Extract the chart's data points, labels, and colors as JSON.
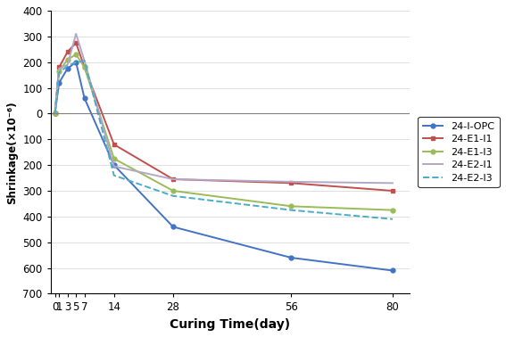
{
  "x_values": [
    0,
    1,
    3,
    5,
    7,
    14,
    28,
    56,
    80
  ],
  "series": [
    {
      "label": "24-I-OPC",
      "color": "#4472C4",
      "linestyle": "-",
      "marker": "o",
      "markersize": 3.5,
      "linewidth": 1.4,
      "values": [
        0,
        120,
        175,
        200,
        60,
        -200,
        -440,
        -560,
        -610
      ]
    },
    {
      "label": "24-E1-I1",
      "color": "#C0504D",
      "linestyle": "-",
      "marker": "s",
      "markersize": 3.5,
      "linewidth": 1.4,
      "values": [
        0,
        180,
        240,
        275,
        180,
        -120,
        -255,
        -270,
        -300
      ]
    },
    {
      "label": "24-E1-I3",
      "color": "#9BBB59",
      "linestyle": "-",
      "marker": "o",
      "markersize": 3.5,
      "linewidth": 1.4,
      "values": [
        0,
        165,
        210,
        230,
        180,
        -175,
        -300,
        -360,
        -375
      ]
    },
    {
      "label": "24-E2-I1",
      "color": "#B3A7C8",
      "linestyle": "-",
      "marker": "None",
      "markersize": 3.5,
      "linewidth": 1.4,
      "values": [
        0,
        175,
        190,
        310,
        205,
        -205,
        -255,
        -265,
        -270
      ]
    },
    {
      "label": "24-E2-I3",
      "color": "#4BACC6",
      "linestyle": "--",
      "marker": "None",
      "markersize": 3.5,
      "linewidth": 1.4,
      "values": [
        0,
        160,
        185,
        200,
        205,
        -240,
        -320,
        -375,
        -410
      ]
    }
  ],
  "xlabel": "Curing Time(day)",
  "ylabel": "Shrinkage(×10⁻⁶)",
  "ylim": [
    -700,
    400
  ],
  "yticks": [
    -700,
    -600,
    -500,
    -400,
    -300,
    -200,
    -100,
    0,
    100,
    200,
    300,
    400
  ],
  "ytick_labels": [
    "700",
    "600",
    "500",
    "400",
    "300",
    "200",
    "100",
    "0",
    "100",
    "200",
    "300",
    "400"
  ],
  "xtick_positions": [
    0,
    1,
    3,
    5,
    7,
    14,
    28,
    56,
    80
  ],
  "xtick_labels": [
    "0",
    "1",
    "3",
    "5",
    "7",
    "14",
    "28",
    "56",
    "80"
  ],
  "background_color": "#ffffff",
  "figsize": [
    5.67,
    3.78
  ],
  "dpi": 100
}
